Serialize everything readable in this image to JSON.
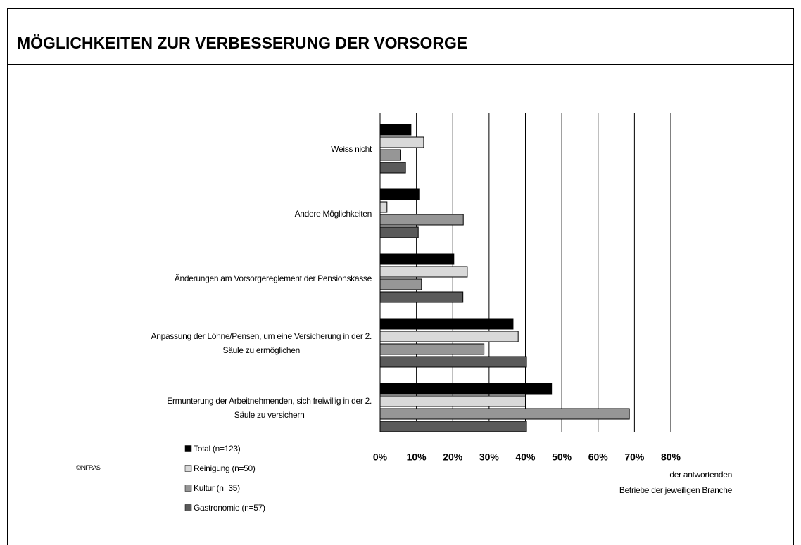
{
  "chart_data": {
    "type": "hbar",
    "title": "MÖGLICHKEITEN ZUR VERBESSERUNG DER VORSORGE",
    "categories": [
      "Weiss nicht",
      "Andere Möglichkeiten",
      "Änderungen am Vorsorgereglement der Pensionskasse",
      "Anpassung der Löhne/Pensen, um eine Versicherung in der 2.\nSäule zu ermöglichen",
      "Ermunterung der Arbeitnehmenden, sich freiwillig in der 2.\nSäule zu versichern"
    ],
    "series": [
      {
        "name": "Total (n=123)",
        "color": "#000000",
        "values": [
          8.5,
          10.7,
          20.3,
          36.6,
          47.2
        ]
      },
      {
        "name": "Reinigung (n=50)",
        "color": "#d9d9d9",
        "values": [
          12,
          1.9,
          24,
          38,
          40
        ]
      },
      {
        "name": "Kultur (n=35)",
        "color": "#969696",
        "values": [
          5.7,
          22.9,
          11.4,
          28.6,
          68.6
        ]
      },
      {
        "name": "Gastronomie (n=57)",
        "color": "#5a5a5a",
        "values": [
          7,
          10.5,
          22.8,
          40.3,
          40.3
        ]
      }
    ],
    "xlim": [
      0,
      80
    ],
    "xticks": [
      {
        "value": 0,
        "label": "0%"
      },
      {
        "value": 10,
        "label": "10%"
      },
      {
        "value": 20,
        "label": "20%"
      },
      {
        "value": 30,
        "label": "30%"
      },
      {
        "value": 40,
        "label": "40%"
      },
      {
        "value": 50,
        "label": "50%"
      },
      {
        "value": 60,
        "label": "60%"
      },
      {
        "value": 70,
        "label": "70%"
      },
      {
        "value": 80,
        "label": "80%"
      }
    ],
    "x_label": "der antwortenden\nBetriebe der jeweiligen Branche",
    "source": "©INFRAS",
    "grid": true
  }
}
